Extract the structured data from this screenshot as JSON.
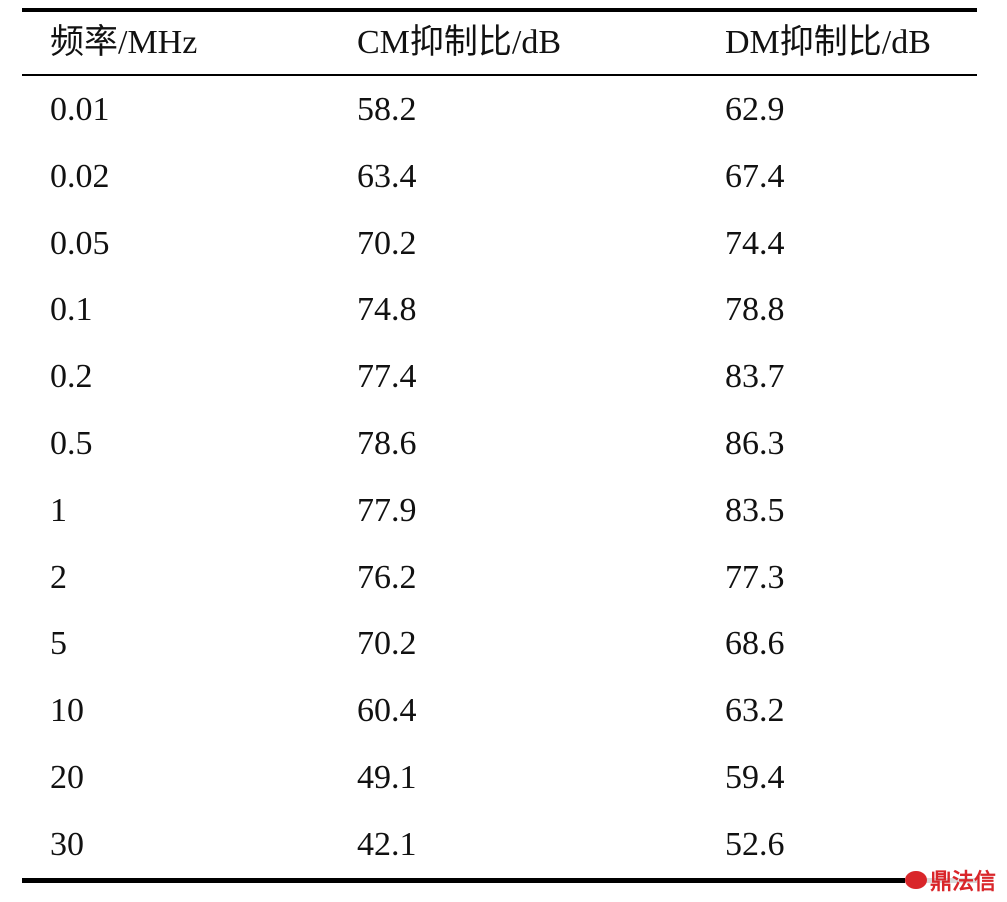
{
  "table": {
    "header": [
      "频率/MHz",
      "CM抑制比/dB",
      "DM抑制比/dB"
    ],
    "rows": [
      [
        0.01,
        58.2,
        62.9
      ],
      [
        0.02,
        63.4,
        67.4
      ],
      [
        0.05,
        70.2,
        74.4
      ],
      [
        0.1,
        74.8,
        78.8
      ],
      [
        0.2,
        77.4,
        83.7
      ],
      [
        0.5,
        78.6,
        86.3
      ],
      [
        1,
        77.9,
        83.5
      ],
      [
        2,
        76.2,
        77.3
      ],
      [
        5,
        70.2,
        68.6
      ],
      [
        10,
        60.4,
        63.2
      ],
      [
        20,
        49.1,
        59.4
      ],
      [
        30,
        42.1,
        52.6
      ]
    ]
  },
  "watermark": "鼎法信"
}
